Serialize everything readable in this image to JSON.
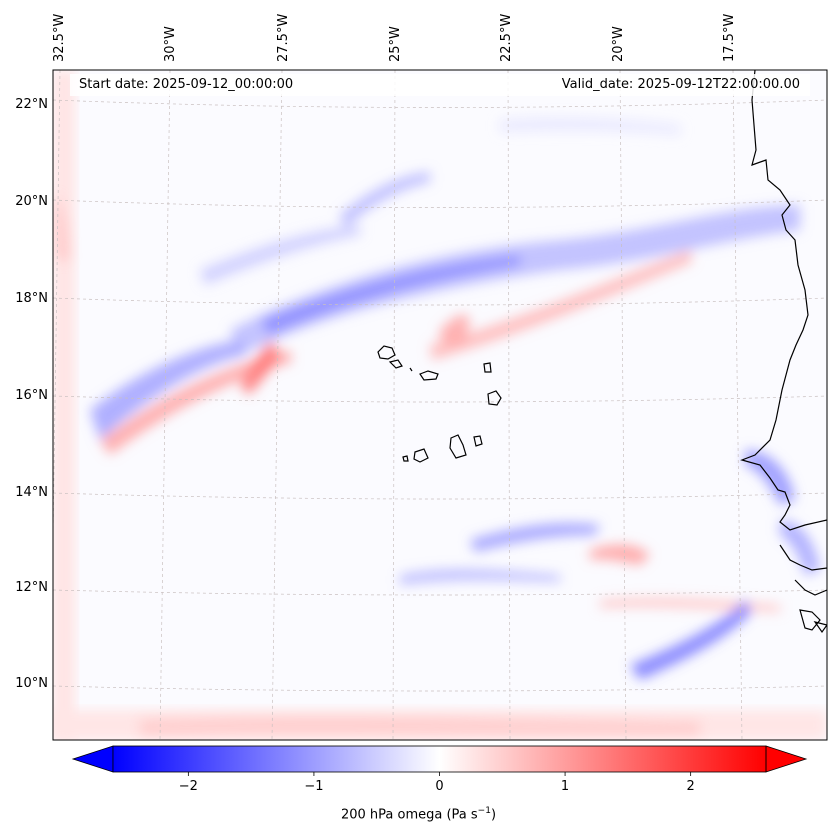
{
  "map": {
    "start_date": "Start date: 2025-09-12_00:00:00",
    "valid_date": "Valid_date: 2025-09-12T22:00:00.00",
    "lon_labels": [
      "32.5°W",
      "30°W",
      "27.5°W",
      "25°W",
      "22.5°W",
      "20°W",
      "17.5°W"
    ],
    "lat_labels": [
      "22°N",
      "20°N",
      "18°N",
      "16°N",
      "14°N",
      "12°N",
      "10°N"
    ],
    "variable": "200 hPa omega",
    "units": "(Pa s",
    "units_sup": "−1",
    "units_close": ")"
  },
  "colorbar": {
    "ticks": [
      "−2",
      "−1",
      "0",
      "1",
      "2"
    ],
    "tick_values": [
      -2,
      -1,
      0,
      1,
      2
    ],
    "range": [
      -2.6,
      2.6
    ],
    "colormap": "bwr",
    "extend": "both",
    "low_color": "#0000ff",
    "mid_color": "#ffffff",
    "high_color": "#ff0000"
  }
}
